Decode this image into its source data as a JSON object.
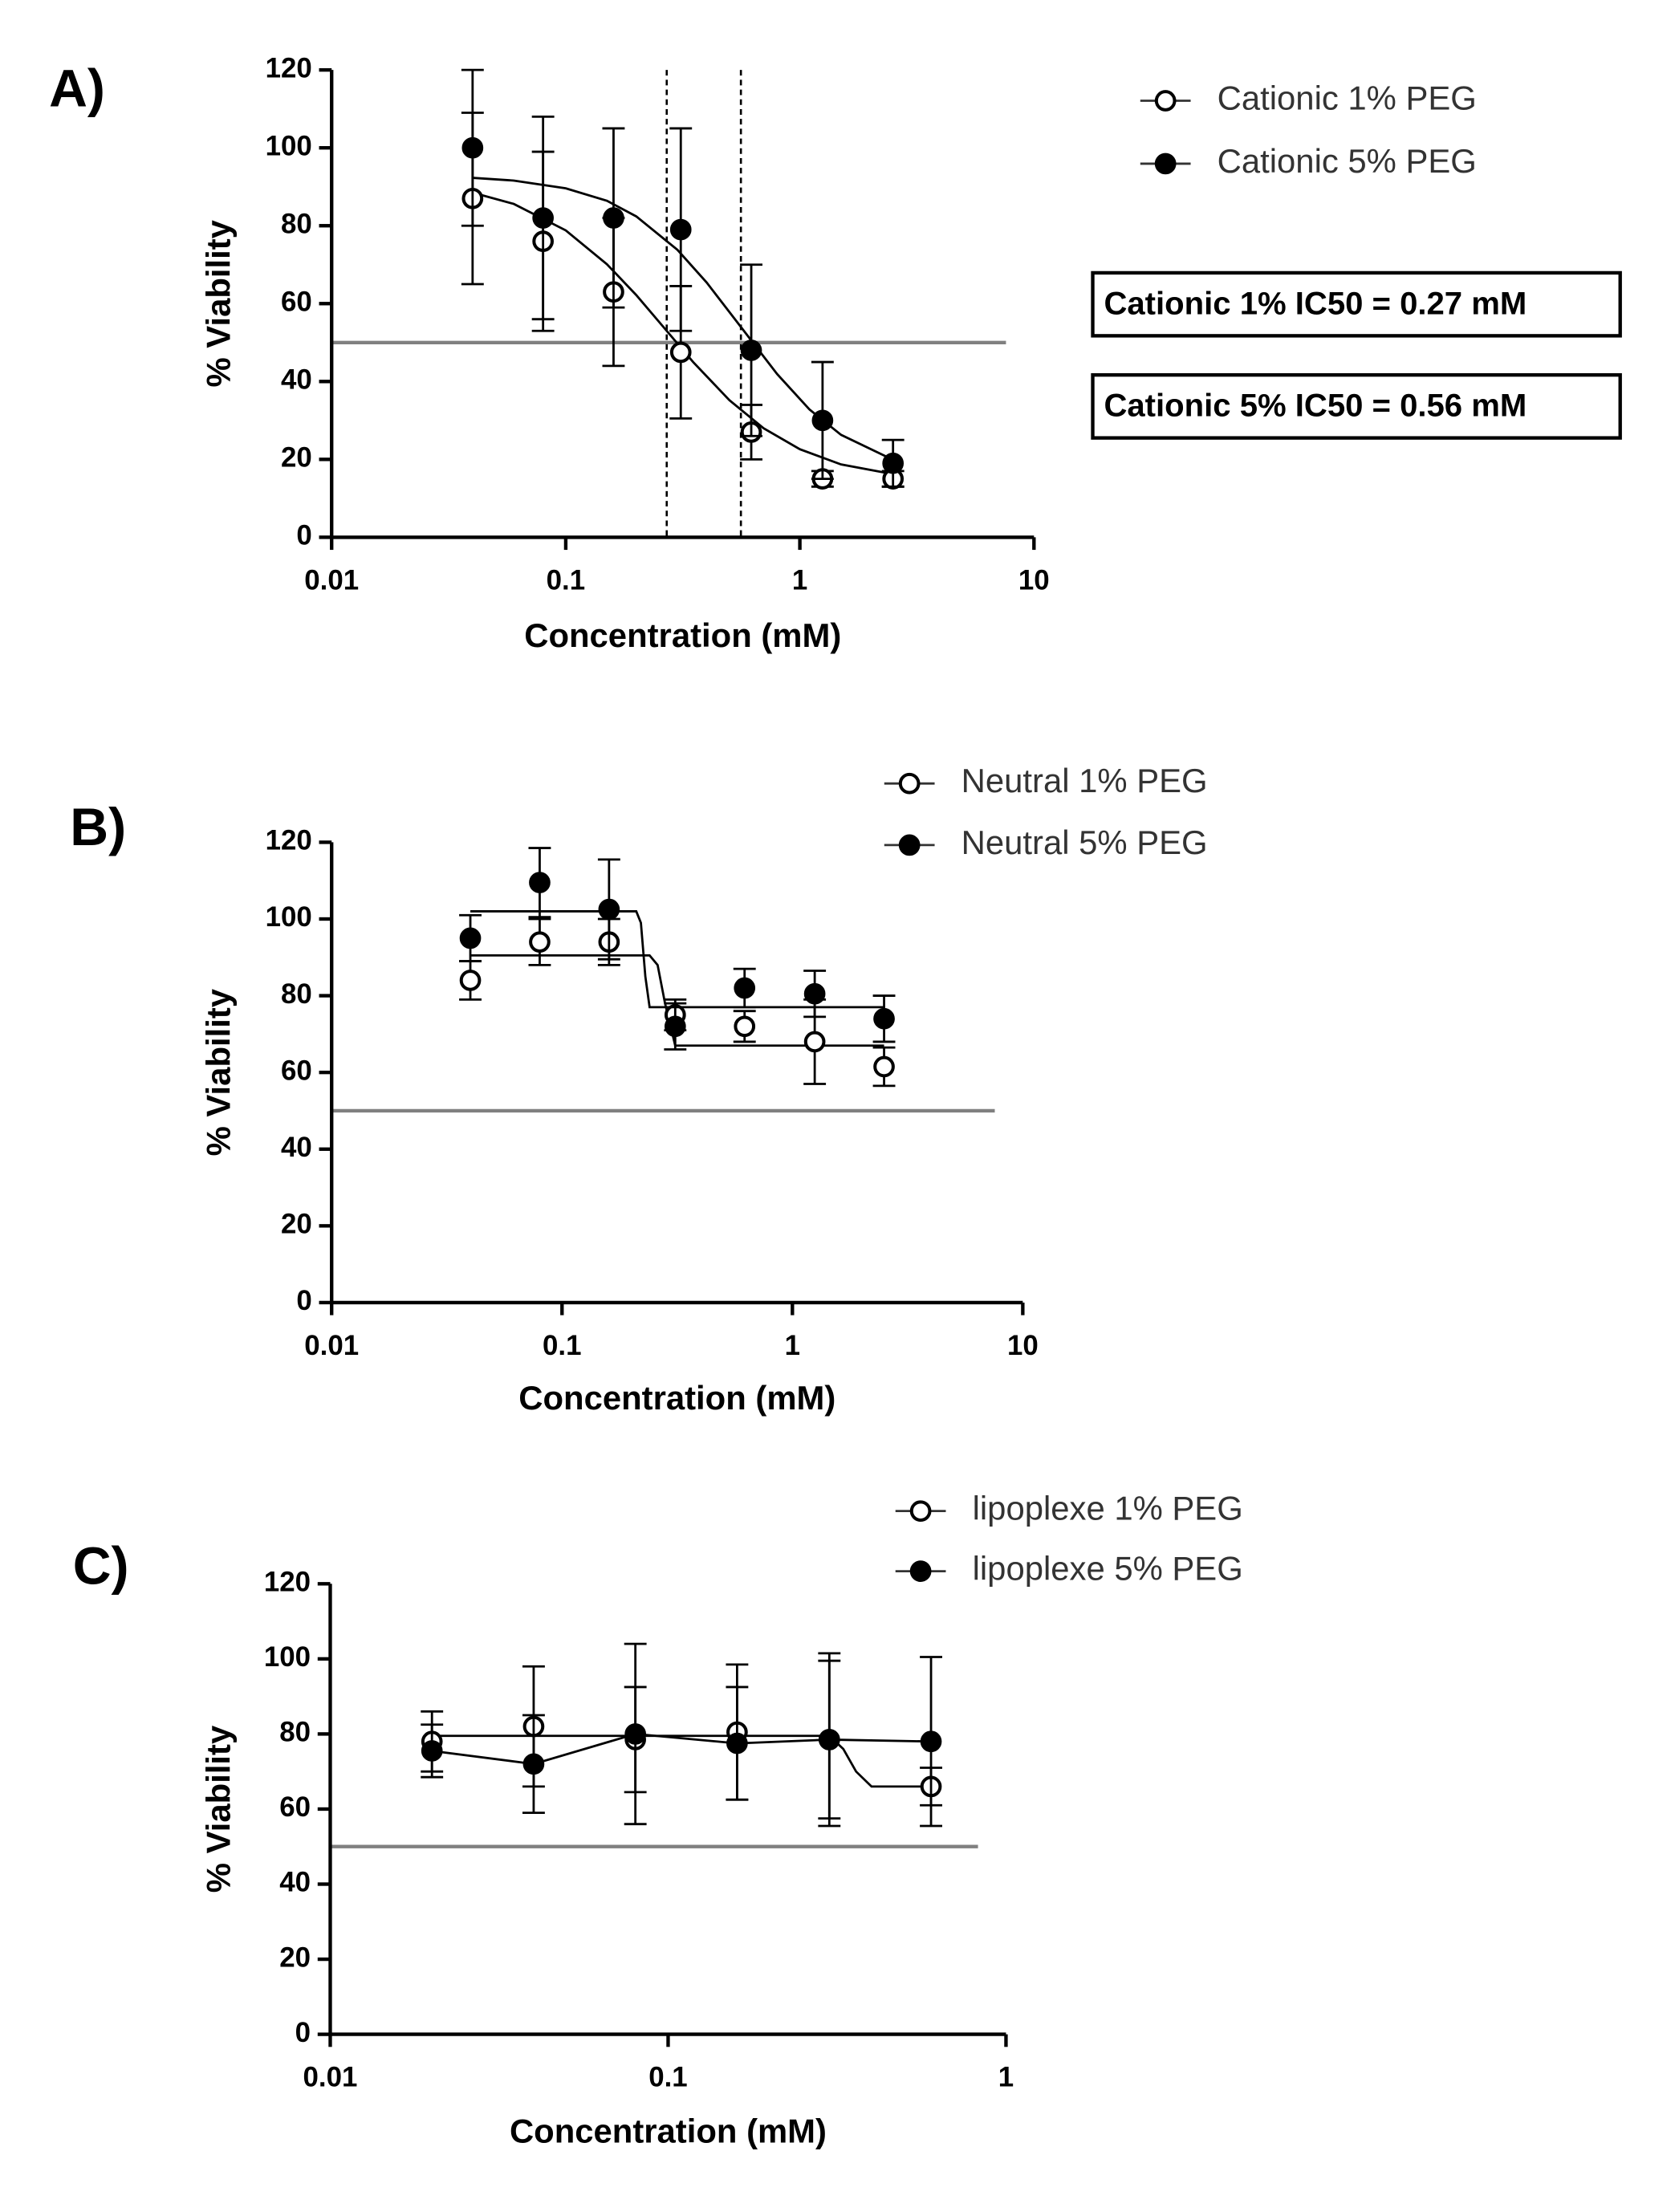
{
  "chart_data": [
    {
      "type": "scatter",
      "panel_label": "A)",
      "x_label": "Concentration (mM)",
      "y_label": "% Viability",
      "xscale": "log",
      "xlim": [
        0.01,
        10
      ],
      "xticks": [
        0.01,
        0.1,
        1,
        10
      ],
      "ylim": [
        0,
        120
      ],
      "yticks": [
        0,
        20,
        40,
        60,
        80,
        100,
        120
      ],
      "hline": 50,
      "vlines": [
        0.27,
        0.56
      ],
      "legend": "top-right",
      "annotations": [
        "Cationic 1% IC50 = 0.27 mM",
        "Cationic 5% IC50 = 0.56 mM"
      ],
      "series": [
        {
          "name": "Cationic 1% PEG",
          "color": "#000000",
          "marker": "open",
          "x": [
            0.04,
            0.08,
            0.16,
            0.31,
            0.62,
            1.25,
            2.5
          ],
          "values": [
            87,
            76,
            63,
            47.5,
            27,
            15,
            15
          ],
          "errors": [
            22,
            23,
            19,
            17,
            7,
            2,
            2
          ],
          "fit": {
            "x": [
              0.04,
              0.06,
              0.1,
              0.15,
              0.2,
              0.27,
              0.35,
              0.5,
              0.7,
              1,
              1.5,
              2.5
            ],
            "values": [
              88.5,
              85.6,
              78.8,
              70.1,
              62.2,
              53,
              45,
              35.2,
              28,
              22.6,
              18.7,
              16.2
            ]
          }
        },
        {
          "name": "Cationic 5% PEG",
          "color": "#000000",
          "marker": "filled",
          "x": [
            0.04,
            0.08,
            0.16,
            0.31,
            0.62,
            1.25,
            2.5
          ],
          "values": [
            100,
            82,
            82,
            79,
            48,
            30,
            19
          ],
          "errors": [
            20,
            26,
            23,
            26,
            22,
            15,
            6
          ],
          "fit": {
            "x": [
              0.04,
              0.06,
              0.1,
              0.15,
              0.2,
              0.3,
              0.4,
              0.56,
              0.8,
              1.1,
              1.5,
              2.5
            ],
            "values": [
              92.3,
              91.6,
              89.6,
              86.4,
              82.4,
              73.8,
              65.4,
              54,
              41.9,
              32.8,
              26.3,
              19.9
            ]
          }
        }
      ]
    },
    {
      "type": "scatter",
      "panel_label": "B)",
      "x_label": "Concentration (mM)",
      "y_label": "% Viability",
      "xscale": "log",
      "xlim": [
        0.01,
        10
      ],
      "xticks": [
        0.01,
        0.1,
        1,
        10
      ],
      "ylim": [
        0,
        120
      ],
      "yticks": [
        0,
        20,
        40,
        60,
        80,
        100,
        120
      ],
      "hline": 50,
      "legend": "top-right",
      "series": [
        {
          "name": "Neutral 1% PEG",
          "color": "#000000",
          "marker": "open",
          "x": [
            0.04,
            0.08,
            0.16,
            0.31,
            0.62,
            1.25,
            2.5
          ],
          "values": [
            84,
            94,
            94,
            75,
            72,
            68,
            61.5
          ],
          "errors": [
            5,
            6,
            6,
            4,
            4,
            11,
            5
          ],
          "fit": {
            "x": [
              0.04,
              0.24,
              0.26,
              0.28,
              0.31,
              2.5
            ],
            "values": [
              90.5,
              90.5,
              88,
              78,
              67,
              67
            ]
          }
        },
        {
          "name": "Neutral 5% PEG",
          "color": "#000000",
          "marker": "filled",
          "x": [
            0.04,
            0.08,
            0.16,
            0.31,
            0.62,
            1.25,
            2.5
          ],
          "values": [
            95,
            109.5,
            102.5,
            72,
            82,
            80.5,
            74
          ],
          "errors": [
            6,
            9,
            13,
            6,
            5,
            6,
            6
          ],
          "fit": {
            "x": [
              0.04,
              0.21,
              0.22,
              0.23,
              0.24,
              2.5
            ],
            "values": [
              102,
              102,
              99,
              85,
              77,
              77
            ]
          }
        }
      ]
    },
    {
      "type": "scatter",
      "panel_label": "C)",
      "x_label": "Concentration (mM)",
      "y_label": "% Viability",
      "xscale": "log",
      "xlim": [
        0.01,
        1
      ],
      "xticks": [
        0.01,
        0.1,
        1
      ],
      "ylim": [
        0,
        120
      ],
      "yticks": [
        0,
        20,
        40,
        60,
        80,
        100,
        120
      ],
      "hline": 50,
      "legend": "top-right",
      "series": [
        {
          "name": "lipoplexe 1% PEG",
          "color": "#000000",
          "marker": "open",
          "x": [
            0.02,
            0.04,
            0.08,
            0.16,
            0.3,
            0.6
          ],
          "values": [
            78,
            82,
            78.5,
            80.5,
            78.5,
            66
          ],
          "errors": [
            8,
            16,
            14,
            18,
            23,
            5
          ],
          "fit": {
            "x": [
              0.02,
              0.3,
              0.33,
              0.36,
              0.4,
              0.6
            ],
            "values": [
              79.5,
              79.5,
              76,
              70,
              66,
              66
            ]
          }
        },
        {
          "name": "lipoplexe 5% PEG",
          "color": "#000000",
          "marker": "filled",
          "x": [
            0.02,
            0.04,
            0.08,
            0.16,
            0.3,
            0.6
          ],
          "values": [
            75.5,
            72,
            80,
            77.5,
            78.5,
            78
          ],
          "errors": [
            7,
            13,
            24,
            15,
            21,
            22.5
          ],
          "fit": {
            "x": [
              0.02,
              0.04,
              0.08,
              0.16,
              0.3,
              0.6
            ],
            "values": [
              75.5,
              72,
              80,
              77.5,
              78.5,
              78
            ]
          }
        }
      ]
    }
  ]
}
